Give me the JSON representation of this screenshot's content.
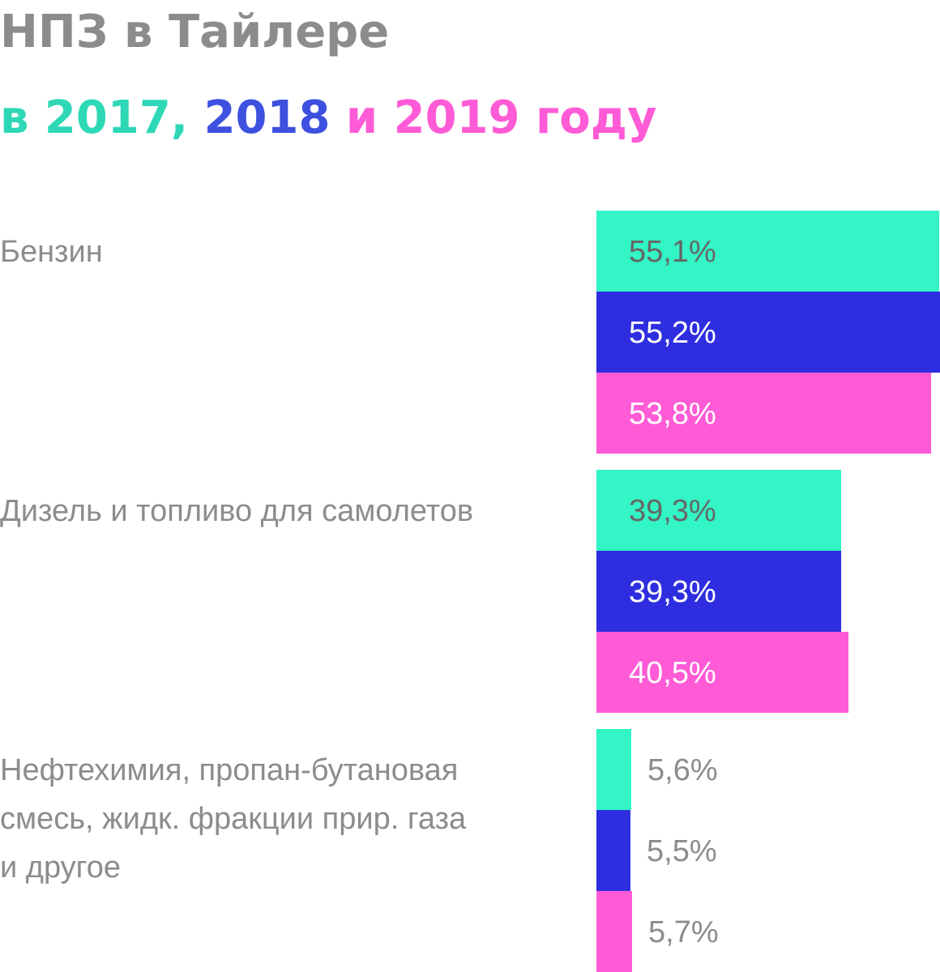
{
  "header": {
    "title": "НПЗ в Тайлере",
    "subtitle_parts": [
      {
        "text": "в 2017, ",
        "color": "#2ed8b6"
      },
      {
        "text": "2018",
        "color": "#3d50e0"
      },
      {
        "text": " и 2019 году",
        "color": "#ff5bd6"
      }
    ]
  },
  "chart_data": {
    "type": "bar",
    "orientation": "horizontal",
    "title": "НПЗ в Тайлере",
    "subtitle": "в 2017, 2018 и 2019 году",
    "categories": [
      "Бензин",
      "Дизель и топливо для самолетов",
      "Нефтехимия, пропан-бутановая смесь, жидк. фракции прир. газа и другое"
    ],
    "category_lines": [
      [
        "Бензин"
      ],
      [
        "Дизель и топливо для самолетов"
      ],
      [
        "Нефтехимия, пропан-бутановая",
        "смесь, жидк. фракции прир. газа",
        "и другое"
      ]
    ],
    "series": [
      {
        "name": "2017",
        "color": "#33f5c5",
        "label_color": "#666666",
        "values": [
          55.1,
          39.3,
          5.6
        ],
        "labels": [
          "55,1%",
          "39,3%",
          "5,6%"
        ]
      },
      {
        "name": "2018",
        "color": "#2e2ee0",
        "label_color": "#ffffff",
        "values": [
          55.2,
          39.3,
          5.5
        ],
        "labels": [
          "55,2%",
          "39,3%",
          "5,5%"
        ]
      },
      {
        "name": "2019",
        "color": "#ff5bd6",
        "label_color": "#ffffff",
        "values": [
          53.8,
          40.5,
          5.7
        ],
        "labels": [
          "53,8%",
          "40,5%",
          "5,7%"
        ]
      }
    ],
    "outside_label_color": "#8c8c8c",
    "xlim": [
      0,
      55.2
    ],
    "grid": false,
    "legend": "none"
  }
}
